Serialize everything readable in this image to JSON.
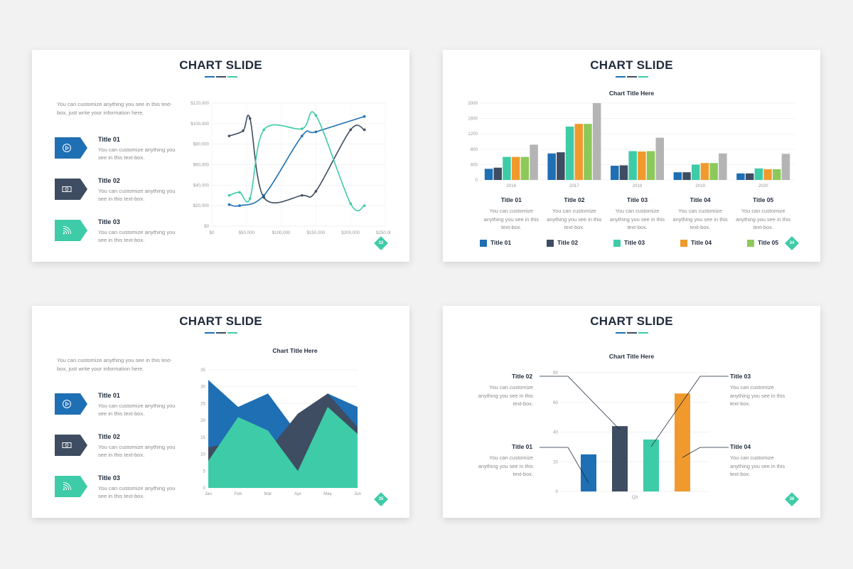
{
  "colors": {
    "blue": "#1e6fb4",
    "navy": "#3e4d61",
    "teal": "#3ecba7",
    "orange": "#f09a2e",
    "green": "#8cc95a",
    "gray": "#b4b4b4"
  },
  "slides": [
    {
      "title": "CHART SLIDE",
      "page": "33",
      "intro": "You can customize anything you see in this text-box, just write your information here.",
      "items": [
        {
          "title": "Title 01",
          "desc": "You can customize anything you see in this text-box.",
          "icon": "play-icon",
          "color": "#1e6fb4"
        },
        {
          "title": "Title 02",
          "desc": "You can customize anything you see in this text-box.",
          "icon": "money-icon",
          "color": "#3e4d61"
        },
        {
          "title": "Title 03",
          "desc": "You can customize anything you see in this text-box.",
          "icon": "wifi-icon",
          "color": "#3ecba7"
        }
      ],
      "chart_data": {
        "type": "line",
        "xlim": [
          0,
          250000
        ],
        "ylim": [
          0,
          120000
        ],
        "x_ticks": [
          "$0",
          "$50,000",
          "$100,000",
          "$150,000",
          "$200,000",
          "$250,000"
        ],
        "y_ticks": [
          "$0",
          "$20,000",
          "$40,000",
          "$60,000",
          "$80,000",
          "$100,000",
          "$120,000"
        ],
        "grid": true,
        "series": [
          {
            "color": "#1e6fb4",
            "points": [
              [
                25000,
                21000
              ],
              [
                40000,
                20000
              ],
              [
                75000,
                30000
              ],
              [
                130000,
                88000
              ],
              [
                150000,
                92000
              ],
              [
                220000,
                107000
              ]
            ]
          },
          {
            "color": "#3e4d61",
            "points": [
              [
                25000,
                88000
              ],
              [
                45000,
                93000
              ],
              [
                55000,
                105000
              ],
              [
                75000,
                28000
              ],
              [
                130000,
                30000
              ],
              [
                150000,
                34000
              ],
              [
                200000,
                94000
              ],
              [
                220000,
                94000
              ]
            ]
          },
          {
            "color": "#3ecba7",
            "points": [
              [
                25000,
                30000
              ],
              [
                40000,
                33000
              ],
              [
                55000,
                27000
              ],
              [
                75000,
                94000
              ],
              [
                130000,
                95000
              ],
              [
                150000,
                108000
              ],
              [
                200000,
                22000
              ],
              [
                220000,
                20000
              ]
            ]
          }
        ]
      }
    },
    {
      "title": "CHART SLIDE",
      "page": "34",
      "chart_data": {
        "type": "bar",
        "title": "Chart Title Here",
        "categories": [
          "2016",
          "2017",
          "2018",
          "2019",
          "2020"
        ],
        "ylim": [
          0,
          2000
        ],
        "y_ticks": [
          "0",
          "400",
          "800",
          "1200",
          "1600",
          "2000"
        ],
        "series": [
          {
            "name": "Title 01",
            "color": "#1e6fb4",
            "values": [
              290,
              690,
              370,
              200,
              170
            ]
          },
          {
            "name": "Title 02",
            "color": "#3e4d61",
            "values": [
              320,
              720,
              380,
              200,
              170
            ]
          },
          {
            "name": "Title 03",
            "color": "#3ecba7",
            "values": [
              600,
              1390,
              750,
              400,
              300
            ]
          },
          {
            "name": "Title 04",
            "color": "#f09a2e",
            "values": [
              600,
              1460,
              740,
              440,
              280
            ]
          },
          {
            "name": "Title 05",
            "color": "#8cc95a",
            "values": [
              600,
              1460,
              750,
              440,
              280
            ]
          },
          {
            "color": "#b4b4b4",
            "values": [
              920,
              2000,
              1100,
              690,
              680
            ]
          }
        ]
      },
      "groups": [
        {
          "title": "Title 01",
          "desc": "You can customize anything you see in this text-box."
        },
        {
          "title": "Title 02",
          "desc": "You can customize anything you see in this text-box."
        },
        {
          "title": "Title 03",
          "desc": "You can customize anything you see in this text-box."
        },
        {
          "title": "Title 04",
          "desc": "You can customize anything you see in this text-box."
        },
        {
          "title": "Title 05",
          "desc": "You can customize anything you see in this text-box."
        }
      ]
    },
    {
      "title": "CHART SLIDE",
      "page": "35",
      "intro": "You can customize anything you see in this text-box, just write your information here.",
      "items": [
        {
          "title": "Title 01",
          "desc": "You can customize anything you see in this text-box.",
          "icon": "play-icon",
          "color": "#1e6fb4"
        },
        {
          "title": "Title 02",
          "desc": "You can customize anything you see in this text-box.",
          "icon": "money-icon",
          "color": "#3e4d61"
        },
        {
          "title": "Title 03",
          "desc": "You can customize anything you see in this text-box.",
          "icon": "wifi-icon",
          "color": "#3ecba7"
        }
      ],
      "chart_data": {
        "type": "area",
        "title": "Chart Title Here",
        "categories": [
          "Jan",
          "Feb",
          "Mar",
          "Apr",
          "May",
          "Jun"
        ],
        "ylim": [
          0,
          35
        ],
        "y_ticks": [
          "0",
          "5",
          "10",
          "15",
          "20",
          "25",
          "30",
          "35"
        ],
        "series": [
          {
            "color": "#1e6fb4",
            "values": [
              32,
              24,
              28,
              16,
              28,
              24
            ]
          },
          {
            "color": "#3e4d61",
            "values": [
              12,
              14,
              11,
              22,
              28,
              18
            ]
          },
          {
            "color": "#3ecba7",
            "values": [
              8,
              21,
              17,
              5,
              24,
              16
            ]
          }
        ]
      }
    },
    {
      "title": "CHART SLIDE",
      "page": "36",
      "chart_data": {
        "type": "bar",
        "title": "Chart Title Here",
        "categories": [
          "Q3"
        ],
        "ylim": [
          0,
          80
        ],
        "y_ticks": [
          "0",
          "20",
          "40",
          "60",
          "80"
        ],
        "series": [
          {
            "name": "Title 01",
            "color": "#1e6fb4",
            "values": [
              25
            ]
          },
          {
            "name": "Title 02",
            "color": "#3e4d61",
            "values": [
              44
            ]
          },
          {
            "name": "Title 03",
            "color": "#3ecba7",
            "values": [
              35
            ]
          },
          {
            "name": "Title 04",
            "color": "#f09a2e",
            "values": [
              66
            ]
          }
        ]
      },
      "callouts": [
        {
          "title": "Title 02",
          "desc": "You can customize anything you see in this text-box."
        },
        {
          "title": "Title 01",
          "desc": "You can customize anything you see in this text-box."
        },
        {
          "title": "Title 03",
          "desc": "You can customize anything you see in this text-box."
        },
        {
          "title": "Title 04",
          "desc": "You can customize anything you see in this text-box."
        }
      ]
    }
  ]
}
